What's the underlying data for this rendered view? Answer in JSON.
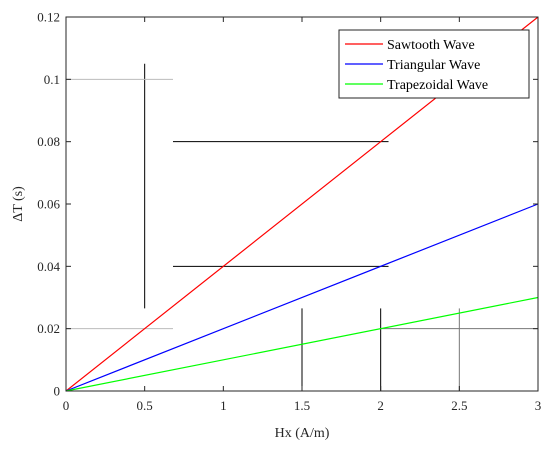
{
  "chart_data": {
    "type": "line",
    "title": "",
    "xlabel": "Hx (A/m)",
    "ylabel": "ΔT (s)",
    "xlim": [
      0,
      3
    ],
    "ylim": [
      0,
      0.12
    ],
    "x_ticks": [
      0,
      0.5,
      1,
      1.5,
      2,
      2.5,
      3
    ],
    "x_tick_labels": [
      "0",
      "0.5",
      "1",
      "1.5",
      "2",
      "2.5",
      "3"
    ],
    "y_ticks": [
      0,
      0.02,
      0.04,
      0.06,
      0.08,
      0.1,
      0.12
    ],
    "y_tick_labels": [
      "0",
      "0.02",
      "0.04",
      "0.06",
      "0.08",
      "0.1",
      "0.12"
    ],
    "grid": false,
    "legend_position": "top-right",
    "series": [
      {
        "name": "Sawtooth Wave",
        "color": "#ff0000",
        "x": [
          0,
          3
        ],
        "y": [
          0,
          0.12
        ]
      },
      {
        "name": "Triangular Wave",
        "color": "#0000ff",
        "x": [
          0,
          3
        ],
        "y": [
          0,
          0.06
        ]
      },
      {
        "name": "Trapezoidal Wave",
        "color": "#00ff00",
        "x": [
          0,
          3
        ],
        "y": [
          0,
          0.03
        ]
      }
    ],
    "annotations": [
      {
        "kind": "vline",
        "x": 0.5,
        "y0": 0.0265,
        "y1": 0.105,
        "color": "#000000"
      },
      {
        "kind": "hline",
        "y": 0.08,
        "x0": 0.68,
        "x1": 2.05,
        "color": "#000000"
      },
      {
        "kind": "hline",
        "y": 0.04,
        "x0": 0.68,
        "x1": 2.05,
        "color": "#000000"
      },
      {
        "kind": "hline",
        "y": 0.1,
        "x0": 0,
        "x1": 0.68,
        "color": "#bbbbbb"
      },
      {
        "kind": "hline",
        "y": 0.02,
        "x0": 0,
        "x1": 0.68,
        "color": "#bbbbbb"
      },
      {
        "kind": "vline",
        "x": 1.5,
        "y0": 0,
        "y1": 0.0265,
        "color": "#000000"
      },
      {
        "kind": "vline",
        "x": 2,
        "y0": 0,
        "y1": 0.0265,
        "color": "#000000"
      },
      {
        "kind": "vline",
        "x": 2.5,
        "y0": 0,
        "y1": 0.0265,
        "color": "#777777"
      },
      {
        "kind": "hline",
        "y": 0.02,
        "x0": 2,
        "x1": 3,
        "color": "#777777"
      }
    ]
  }
}
